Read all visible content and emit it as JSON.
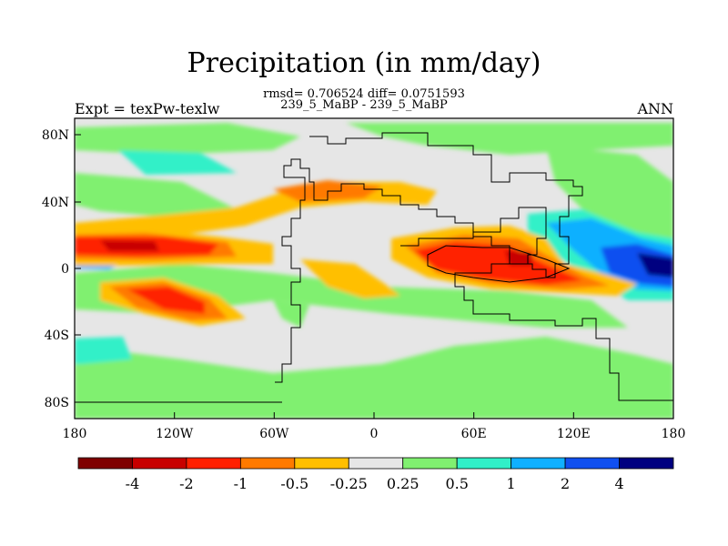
{
  "title": "Precipitation (in mm/day)",
  "stats_line": "rmsd= 0.706524 diff= 0.0751593",
  "experiment_line": "239_5_MaBP - 239_5_MaBP",
  "expt_label": "Expt = texPw-texlw",
  "season": "ANN",
  "colors": {
    "neutral": "#e6e6e6",
    "background": "#ffffff",
    "coastline": "#000000"
  },
  "axes": {
    "x_ticks": [
      "180",
      "120W",
      "60W",
      "0",
      "60E",
      "120E",
      "180"
    ],
    "y_ticks": [
      "80N",
      "40N",
      "0",
      "40S",
      "80S"
    ],
    "lon_range": [
      -180,
      180
    ],
    "lat_range": [
      -90,
      90
    ]
  },
  "colorbar": {
    "colors": [
      "#7f0000",
      "#c80000",
      "#ff2000",
      "#ff7a00",
      "#ffbf00",
      "#e6e6e6",
      "#80f070",
      "#30f0c8",
      "#10b0ff",
      "#1050f0",
      "#000080"
    ],
    "labels": [
      "-4",
      "-2",
      "-1",
      "-0.5",
      "-0.25",
      "0.25",
      "0.5",
      "1",
      "2",
      "4"
    ]
  },
  "chart_data": {
    "type": "heatmap",
    "title": "Precipitation (in mm/day)",
    "subtitle": "rmsd= 0.706524 diff= 0.0751593",
    "x": [
      "180",
      "120W",
      "60W",
      "0",
      "60E",
      "120E",
      "180"
    ],
    "y": [
      "80N",
      "40N",
      "0",
      "40S",
      "80S"
    ],
    "levels": [
      -4,
      -2,
      -1,
      -0.5,
      -0.25,
      0.25,
      0.5,
      1,
      2,
      4
    ],
    "grid": false,
    "legend": "bottom"
  }
}
